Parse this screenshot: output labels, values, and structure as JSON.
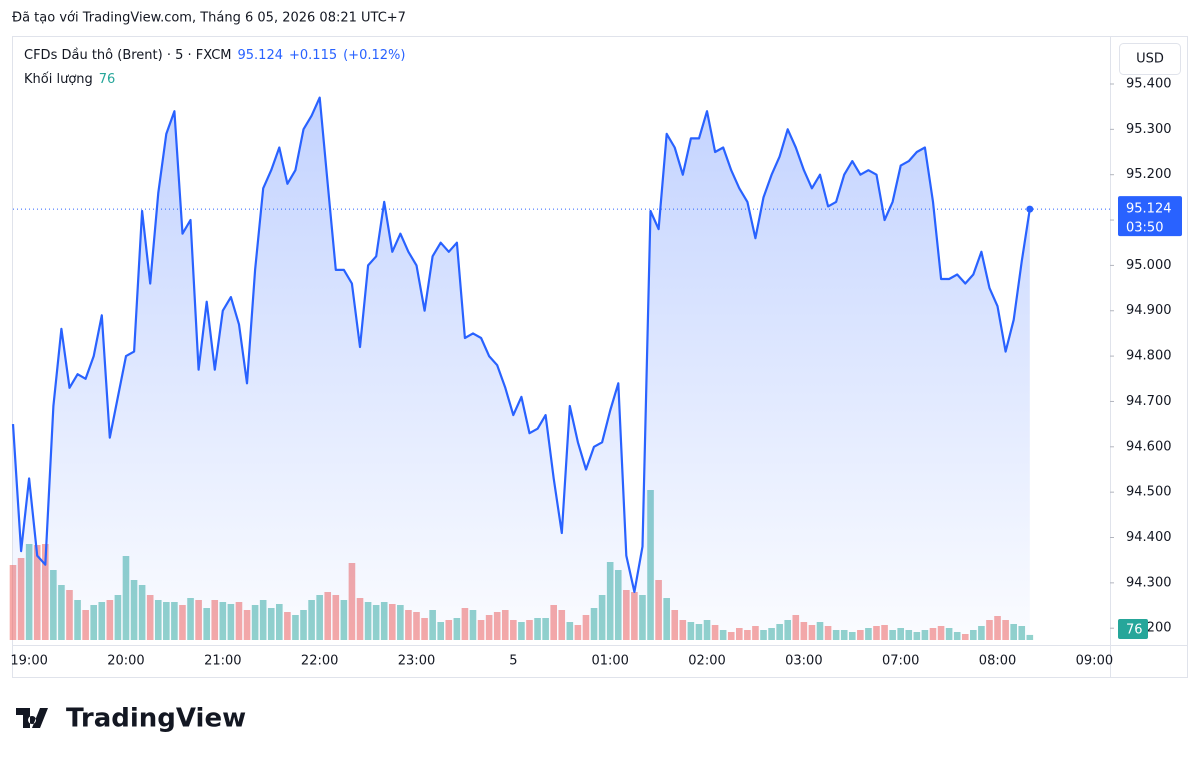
{
  "chart_data": {
    "type": "area",
    "created_note": "Đã tạo với TradingView.com, Tháng 6 05, 2026 08:21 UTC+7",
    "currency": "USD",
    "change_label": "+0.115",
    "change_pct_label": "(+0.12%)",
    "countdown": "03:50",
    "brand": "TradingView",
    "line_color": "#2962ff",
    "up_color": "#26a69a",
    "down_color": "#ef5350",
    "ylim": [
      94.174,
      95.497
    ],
    "yticks": [
      {
        "value": 94.2,
        "label": "94.200"
      },
      {
        "value": 94.3,
        "label": "94.300"
      },
      {
        "value": 94.4,
        "label": "94.400"
      },
      {
        "value": 94.5,
        "label": "94.500"
      },
      {
        "value": 94.6,
        "label": "94.600"
      },
      {
        "value": 94.7,
        "label": "94.700"
      },
      {
        "value": 94.8,
        "label": "94.800"
      },
      {
        "value": 94.9,
        "label": "94.900"
      },
      {
        "value": 95.0,
        "label": "95.000"
      },
      {
        "value": 95.1,
        "label": "95.100"
      },
      {
        "value": 95.2,
        "label": "95.200"
      },
      {
        "value": 95.3,
        "label": "95.300"
      },
      {
        "value": 95.4,
        "label": "95.400"
      }
    ],
    "categories": [
      null,
      null,
      "19:00",
      null,
      null,
      null,
      null,
      null,
      null,
      null,
      null,
      null,
      null,
      null,
      "20:00",
      null,
      null,
      null,
      null,
      null,
      null,
      null,
      null,
      null,
      null,
      null,
      "21:00",
      null,
      null,
      null,
      null,
      null,
      null,
      null,
      null,
      null,
      null,
      null,
      "22:00",
      null,
      null,
      null,
      null,
      null,
      null,
      null,
      null,
      null,
      null,
      null,
      "23:00",
      null,
      null,
      null,
      null,
      null,
      null,
      null,
      null,
      null,
      null,
      null,
      "5",
      null,
      null,
      null,
      null,
      null,
      null,
      null,
      null,
      null,
      null,
      null,
      "01:00",
      null,
      null,
      null,
      null,
      null,
      null,
      null,
      null,
      null,
      null,
      null,
      "02:00",
      null,
      null,
      null,
      null,
      null,
      null,
      null,
      null,
      null,
      null,
      null,
      "03:00",
      null,
      null,
      null,
      null,
      null,
      null,
      null,
      null,
      null,
      null,
      null,
      "07:00",
      null,
      null,
      null,
      null,
      null,
      null,
      null,
      null,
      null,
      null,
      null,
      "08:00",
      null,
      null,
      null,
      null,
      null,
      null,
      null,
      null,
      null,
      null,
      null,
      "09:00",
      null
    ],
    "series": [
      {
        "name": "CFDs Dầu thô (Brent) · 5 · FXCM",
        "color": "#2962ff",
        "values": [
          94.65,
          94.37,
          94.53,
          94.36,
          94.34,
          94.69,
          94.86,
          94.73,
          94.76,
          94.75,
          94.8,
          94.89,
          94.62,
          94.71,
          94.8,
          94.81,
          95.12,
          94.96,
          95.16,
          95.29,
          95.34,
          95.07,
          95.1,
          94.77,
          94.92,
          94.77,
          94.9,
          94.93,
          94.87,
          94.74,
          94.99,
          95.17,
          95.21,
          95.26,
          95.18,
          95.21,
          95.3,
          95.33,
          95.37,
          95.18,
          94.99,
          94.99,
          94.96,
          94.82,
          95.0,
          95.02,
          95.14,
          95.03,
          95.07,
          95.03,
          95.0,
          94.9,
          95.02,
          95.05,
          95.03,
          95.05,
          94.84,
          94.85,
          94.84,
          94.8,
          94.78,
          94.73,
          94.67,
          94.71,
          94.63,
          94.64,
          94.67,
          94.53,
          94.41,
          94.69,
          94.61,
          94.55,
          94.6,
          94.61,
          94.68,
          94.74,
          94.36,
          94.28,
          94.38,
          95.12,
          95.08,
          95.29,
          95.26,
          95.2,
          95.28,
          95.28,
          95.34,
          95.25,
          95.26,
          95.21,
          95.17,
          95.14,
          95.06,
          95.15,
          95.2,
          95.24,
          95.3,
          95.26,
          95.21,
          95.17,
          95.2,
          95.13,
          95.14,
          95.2,
          95.23,
          95.2,
          95.21,
          95.2,
          95.1,
          95.14,
          95.22,
          95.23,
          95.25,
          95.26,
          95.14,
          94.97,
          94.97,
          94.98,
          94.96,
          94.98,
          95.03,
          94.95,
          94.91,
          94.81,
          94.88,
          95.01,
          95.124,
          null,
          null,
          null,
          null,
          null,
          null,
          null,
          null,
          null
        ]
      }
    ],
    "volume": {
      "name": "Khối lượng",
      "values": [
        1125,
        1230,
        1440,
        1425,
        1440,
        1050,
        825,
        750,
        600,
        450,
        525,
        570,
        600,
        675,
        1260,
        900,
        825,
        675,
        600,
        570,
        570,
        525,
        630,
        600,
        480,
        600,
        570,
        540,
        570,
        450,
        525,
        600,
        480,
        540,
        420,
        375,
        450,
        600,
        675,
        720,
        675,
        600,
        1155,
        630,
        570,
        525,
        570,
        540,
        525,
        450,
        420,
        330,
        450,
        270,
        300,
        330,
        480,
        450,
        300,
        375,
        420,
        450,
        300,
        270,
        300,
        330,
        330,
        525,
        450,
        270,
        225,
        375,
        480,
        675,
        1170,
        1050,
        750,
        720,
        675,
        2250,
        900,
        630,
        450,
        300,
        270,
        240,
        300,
        225,
        150,
        120,
        180,
        150,
        210,
        150,
        180,
        240,
        300,
        375,
        270,
        225,
        270,
        210,
        150,
        150,
        120,
        150,
        180,
        210,
        225,
        150,
        180,
        150,
        120,
        150,
        180,
        210,
        180,
        120,
        90,
        150,
        210,
        300,
        360,
        300,
        240,
        210,
        76,
        null,
        null,
        null,
        null,
        null,
        null,
        null,
        null,
        null
      ]
    }
  }
}
